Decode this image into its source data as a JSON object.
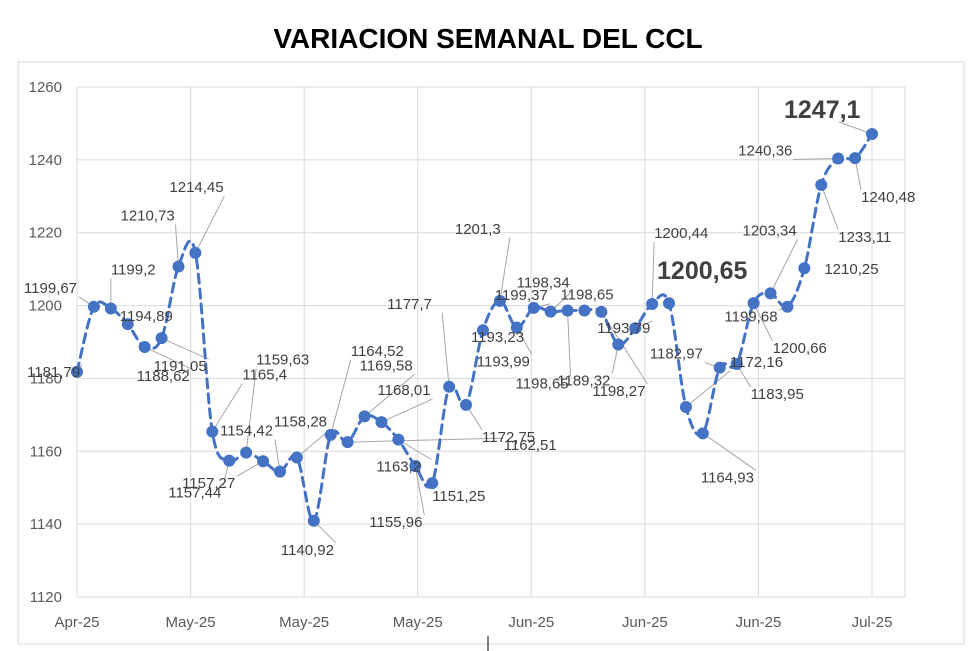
{
  "chart_data": {
    "type": "line",
    "title": "VARIACION SEMANAL DEL CCL",
    "xlabel": "",
    "ylabel": "",
    "ylim": [
      1120,
      1260
    ],
    "yticks": [
      1120,
      1140,
      1160,
      1180,
      1200,
      1220,
      1240,
      1260
    ],
    "xtick_labels": [
      "Apr-25",
      "May-25",
      "May-25",
      "May-25",
      "Jun-25",
      "Jun-25",
      "Jun-25",
      "Jul-25"
    ],
    "grid": true,
    "legend": "none",
    "line_color": "#4472C4",
    "line_style": "dashed",
    "series": [
      {
        "values": [
          1181.79,
          1199.67,
          1199.2,
          1194.89,
          1188.62,
          1191.05,
          1210.73,
          1214.45,
          1165.4,
          1157.44,
          1159.63,
          1157.27,
          1154.42,
          1158.28,
          1140.92,
          1164.52,
          1162.51,
          1169.58,
          1168.01,
          1163.2,
          1155.96,
          1151.25,
          1177.7,
          1172.75,
          1193.23,
          1201.3,
          1193.99,
          1199.37,
          1198.34,
          1198.65,
          1198.65,
          1198.27,
          1189.32,
          1193.79,
          1200.44,
          1200.65,
          1172.16,
          1164.93,
          1182.97,
          1183.95,
          1200.66,
          1203.34,
          1199.68,
          1210.25,
          1233.11,
          1240.36,
          1240.48,
          1247.1
        ]
      }
    ],
    "data_labels": [
      "1181,79",
      "1199,67",
      "1199,2",
      "1194,89",
      "1188,62",
      "1191,05",
      "1210,73",
      "1214,45",
      "1165,4",
      "1157,44",
      "1159,63",
      "1157,27",
      "1154,42",
      "1158,28",
      "1140,92",
      "1164,52",
      "1162,51",
      "1169,58",
      "1168,01",
      "1163,2",
      "1155,96",
      "1151,25",
      "1177,7",
      "1172,75",
      "1193,23",
      "1201,3",
      "1193,99",
      "1199,37",
      "1198,34",
      "1198,65",
      "1198,65",
      "1198,27",
      "1189,32",
      "1193,79",
      "1200,44",
      "1200,65",
      "1172,16",
      "1164,93",
      "1182,97",
      "1183,95",
      "1200,66",
      "1203,34",
      "1199,68",
      "1210,25",
      "1233,11",
      "1240,36",
      "1240,48",
      "1247,1"
    ]
  }
}
